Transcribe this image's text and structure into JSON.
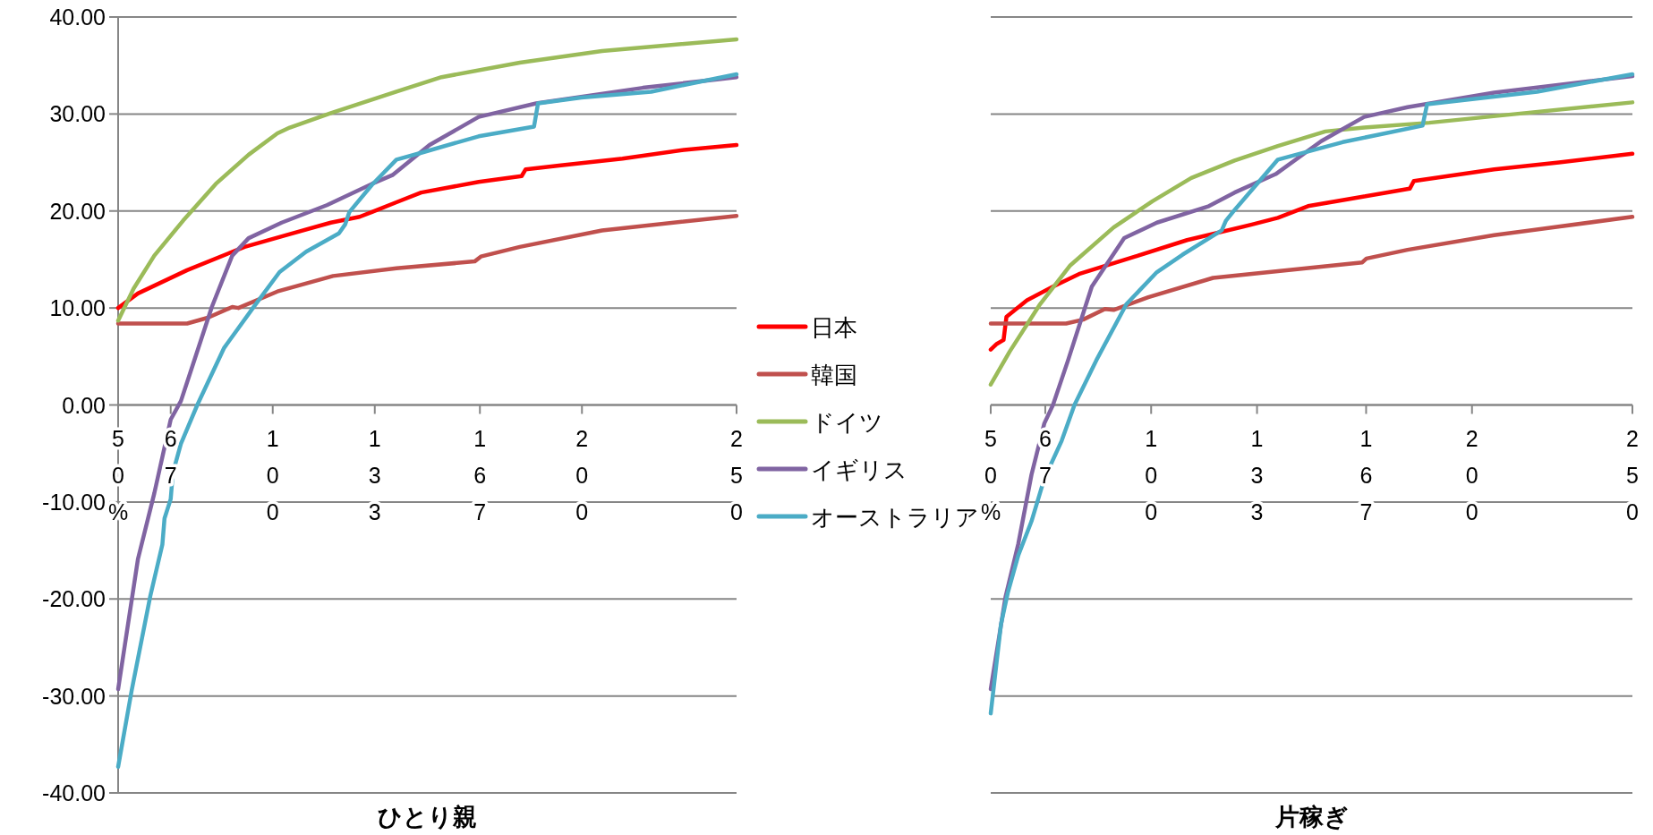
{
  "chart_data": [
    {
      "type": "line",
      "xlabel": "ひとり親",
      "xlim": [
        50,
        250
      ],
      "ylim": [
        -40,
        40
      ],
      "xticks": [
        {
          "value": 50,
          "label": "50%"
        },
        67,
        100,
        133,
        167,
        200,
        250
      ],
      "yticks": [
        {
          "value": -40,
          "label": "-40.00"
        },
        {
          "value": -30,
          "label": "-30.00"
        },
        {
          "value": -20,
          "label": "-20.00"
        },
        {
          "value": -10,
          "label": "-10.00"
        },
        {
          "value": 0,
          "label": "0.00"
        },
        {
          "value": 10,
          "label": "10.00"
        },
        {
          "value": 20,
          "label": "20.00"
        },
        {
          "value": 30,
          "label": "30.00"
        },
        {
          "value": 40,
          "label": "40.00"
        }
      ],
      "grid": "y",
      "legend": "right",
      "marker": "none",
      "series": [
        {
          "name": "日本",
          "color": "#ff0000",
          "x": [
            50,
            56.4,
            72.3,
            90.9,
            104.2,
            118.8,
            128.1,
            132.1,
            140,
            148,
            166.6,
            180.5,
            181.8,
            193.2,
            213.1,
            233,
            250
          ],
          "values": [
            10.0,
            11.5,
            13.9,
            16.3,
            17.5,
            18.8,
            19.4,
            19.9,
            20.9,
            21.9,
            23.0,
            23.6,
            24.3,
            24.7,
            25.4,
            26.3,
            26.8
          ]
        },
        {
          "name": "韓国",
          "color": "#c0504d",
          "x": [
            50,
            72.3,
            79,
            86.9,
            88.9,
            101.5,
            119.5,
            140,
            165.3,
            167.3,
            179.9,
            206.5,
            250
          ],
          "values": [
            8.4,
            8.4,
            9.0,
            10.1,
            10.0,
            11.7,
            13.3,
            14.1,
            14.8,
            15.3,
            16.3,
            18.0,
            19.5
          ]
        },
        {
          "name": "ドイツ",
          "color": "#9bbb59",
          "x": [
            50,
            55,
            61.7,
            71,
            81.6,
            92.2,
            101.5,
            105.5,
            118.8,
            140,
            154.6,
            179.9,
            206.5,
            250
          ],
          "values": [
            8.7,
            12.0,
            15.4,
            19.0,
            22.8,
            25.8,
            28.0,
            28.6,
            30.1,
            32.3,
            33.8,
            35.3,
            36.5,
            37.7
          ]
        },
        {
          "name": "イギリス",
          "color": "#8064a2",
          "x": [
            50,
            56.4,
            61.7,
            67,
            70.3,
            73.6,
            80.3,
            86.9,
            92.2,
            102.9,
            117.5,
            132.1,
            138.7,
            150.7,
            166.6,
            185.2,
            219.7,
            250
          ],
          "values": [
            -29.3,
            -15.9,
            -9.1,
            -1.5,
            0.4,
            3.6,
            10.1,
            15.4,
            17.2,
            18.8,
            20.6,
            22.8,
            23.7,
            26.8,
            29.7,
            31.1,
            32.7,
            33.8
          ]
        },
        {
          "name": "オーストラリア",
          "color": "#4bacc6",
          "x": [
            50,
            54.4,
            60.4,
            64.3,
            65,
            67,
            67.7,
            70.3,
            75.6,
            84.3,
            93.6,
            102.2,
            110.8,
            121.4,
            123.4,
            124.8,
            132.1,
            140,
            148,
            166.6,
            184.5,
            185.8,
            199.8,
            222.4,
            250
          ],
          "values": [
            -37.3,
            -29.4,
            -19.7,
            -14.4,
            -11.7,
            -9.7,
            -7.0,
            -4.0,
            0,
            5.9,
            10.0,
            13.7,
            15.8,
            17.7,
            18.6,
            19.9,
            22.7,
            25.3,
            26.0,
            27.7,
            28.7,
            31.1,
            31.7,
            32.3,
            34.1
          ]
        }
      ]
    },
    {
      "type": "line",
      "xlabel": "片稼ぎ",
      "xlim": [
        50,
        250
      ],
      "ylim": [
        -40,
        40
      ],
      "xticks": [
        {
          "value": 50,
          "label": "50%"
        },
        67,
        100,
        133,
        167,
        200,
        250
      ],
      "yticks": [
        {
          "value": -40,
          "label": null
        },
        {
          "value": -30,
          "label": null
        },
        {
          "value": -20,
          "label": null
        },
        {
          "value": -10,
          "label": null
        },
        {
          "value": 0,
          "label": null
        },
        {
          "value": 10,
          "label": null
        },
        {
          "value": 20,
          "label": null
        },
        {
          "value": 30,
          "label": null
        },
        {
          "value": 40,
          "label": null
        }
      ],
      "grid": "y",
      "tick_labels": "x",
      "marker": "none",
      "series": [
        {
          "color": "#ff0000",
          "x": [
            50,
            51.9,
            54,
            54.9,
            61.3,
            69.4,
            77.5,
            95,
            111.2,
            131.4,
            139.5,
            148.9,
            166.4,
            180.6,
            181.9,
            206.9,
            227.1,
            250
          ],
          "values": [
            5.7,
            6.3,
            6.7,
            9.1,
            10.8,
            12.2,
            13.5,
            15.3,
            17.0,
            18.6,
            19.3,
            20.5,
            21.5,
            22.3,
            23.1,
            24.3,
            25.0,
            25.9
          ]
        },
        {
          "color": "#c0504d",
          "x": [
            50,
            73.5,
            78.8,
            85.6,
            88.3,
            99.1,
            119.3,
            139.5,
            165.8,
            167.1,
            179.9,
            206.9,
            250
          ],
          "values": [
            8.4,
            8.4,
            8.8,
            9.9,
            9.8,
            11.1,
            13.1,
            13.8,
            14.7,
            15.1,
            16.0,
            17.5,
            19.4
          ]
        },
        {
          "color": "#9bbb59",
          "x": [
            50,
            55.9,
            65.4,
            74.8,
            88.3,
            100.4,
            112.5,
            126,
            139.5,
            154.3,
            166.4,
            186.7,
            213.6,
            250
          ],
          "values": [
            2.1,
            5.5,
            10.4,
            14.4,
            18.3,
            21.0,
            23.4,
            25.2,
            26.7,
            28.2,
            28.6,
            29.1,
            30.0,
            31.2
          ]
        },
        {
          "color": "#8064a2",
          "x": [
            50,
            54.6,
            58.6,
            62.7,
            66.7,
            69.4,
            74.1,
            81.5,
            91.6,
            101.8,
            118,
            126,
            138.8,
            153,
            166.4,
            179.9,
            206.9,
            250
          ],
          "values": [
            -29.3,
            -19.8,
            -14.3,
            -7.2,
            -1.9,
            0,
            4.6,
            12.2,
            17.2,
            18.8,
            20.5,
            21.9,
            23.8,
            27.2,
            29.7,
            30.7,
            32.2,
            33.9
          ]
        },
        {
          "color": "#4bacc6",
          "x": [
            50,
            53.2,
            55.3,
            58.6,
            62.7,
            66.7,
            72.1,
            76.1,
            82.9,
            92.3,
            101.8,
            109.8,
            122,
            123.3,
            126,
            139.5,
            159.7,
            184.6,
            186,
            220.3,
            250
          ],
          "values": [
            -31.8,
            -22.6,
            -19.4,
            -15.5,
            -12.0,
            -7.6,
            -3.7,
            0,
            4.6,
            10.4,
            13.7,
            15.5,
            18.0,
            19.0,
            20.1,
            25.3,
            27.1,
            28.8,
            31.0,
            32.3,
            34.1
          ]
        }
      ]
    }
  ]
}
